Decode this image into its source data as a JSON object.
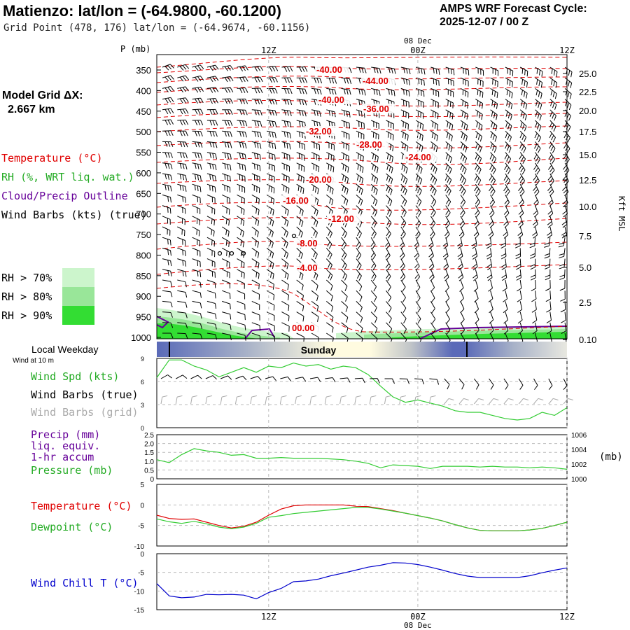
{
  "header": {
    "title": "Matienzo:  lat/lon = (-64.9800, -60.1200)",
    "subtitle": "Grid Point (478, 176) lat/lon = (-64.9674, -60.1156)",
    "cycle_title": "AMPS WRF Forecast Cycle:",
    "cycle_value": "2025-12-07 / 00  Z"
  },
  "model_grid": {
    "label": "Model Grid ΔX:",
    "value": "2.667 km"
  },
  "legend": {
    "temperature": "Temperature (°C)",
    "rh": "RH (%, WRT liq. wat.)",
    "cloud": "Cloud/Precip Outline",
    "wind_barbs": "Wind Barbs (kts) (true)",
    "rh_items": [
      "RH > 70%",
      "RH > 80%",
      "RH > 90%"
    ]
  },
  "colors": {
    "temperature": "#e00000",
    "rh70": "#ccf5cc",
    "rh80": "#99e699",
    "rh90": "#33dd33",
    "cloud": "#660099",
    "wind_speed": "#33cc33",
    "pressure": "#33cc33",
    "dewpoint": "#33cc33",
    "windchill": "#0000cc",
    "grid_barbs": "#aaaaaa",
    "time_bar_dark": "#5a6ab8",
    "time_bar_light": "#fffbe0"
  },
  "time_axis": {
    "top_date": "08 Dec",
    "ticks": [
      {
        "label": "12Z",
        "hour": 12
      },
      {
        "label": "00Z",
        "hour": 24
      },
      {
        "label": "12Z",
        "hour": 36
      }
    ],
    "hours_start": 3,
    "hours_end": 36,
    "bottom_date": "08 Dec"
  },
  "local_weekday": {
    "label": "Local Weekday",
    "day": "Sunday",
    "wind_note": "Wind at 10 m"
  },
  "chart_data": [
    {
      "type": "cross-section",
      "name": "upper-air time-height section",
      "ylabel": "P (mb)",
      "ylabel_right": "Kft MSL",
      "pressure_ticks": [
        350,
        400,
        450,
        500,
        550,
        600,
        650,
        700,
        750,
        800,
        850,
        900,
        950,
        1000
      ],
      "kft_ticks": [
        "25.0",
        "22.5",
        "20.0",
        "17.5",
        "15.0",
        "12.5",
        "10.0",
        "7.5",
        "5.0",
        "2.5",
        "0.10"
      ],
      "temperature_contour_labels": [
        "-40.00",
        "-44.00",
        "-40.00",
        "-36.00",
        "-32.00",
        "-28.00",
        "-24.00",
        "-20.00",
        "-16.00",
        "-12.00",
        "-8.00",
        "-4.00",
        "00.00"
      ]
    },
    {
      "type": "line",
      "name": "surface wind",
      "labels": [
        "Wind Spd (kts)",
        "Wind Barbs (true)",
        "Wind Barbs (grid)"
      ],
      "yticks": [
        "9",
        "6",
        "3",
        "0"
      ],
      "ylim": [
        0,
        9
      ],
      "x": [
        3,
        4,
        5,
        6,
        7,
        8,
        9,
        10,
        11,
        12,
        13,
        14,
        15,
        16,
        17,
        18,
        19,
        20,
        21,
        22,
        23,
        24,
        25,
        26,
        27,
        28,
        29,
        30,
        31,
        32,
        33,
        34,
        35,
        36
      ],
      "series": [
        {
          "name": "Wind Spd (kts)",
          "values": [
            6.5,
            8.8,
            8.8,
            8.0,
            7.5,
            6.6,
            7.2,
            7.8,
            7.2,
            8.0,
            7.8,
            8.4,
            8.0,
            8.2,
            7.6,
            8.0,
            7.8,
            6.9,
            5.4,
            4.0,
            3.3,
            3.6,
            3.2,
            2.8,
            2.2,
            2.0,
            2.0,
            1.6,
            1.2,
            1.0,
            1.2,
            2.0,
            1.6,
            2.6
          ]
        }
      ]
    },
    {
      "type": "line",
      "name": "precip and pressure",
      "labels": [
        "Precip (mm)",
        "liq. equiv.",
        "1-hr accum",
        "Pressure (mb)"
      ],
      "yticks_left": [
        "2.5",
        "2.0",
        "1.5",
        "1.0",
        "0.5",
        "0"
      ],
      "yticks_right": [
        "1006",
        "1004",
        "1002",
        "1000"
      ],
      "ylabel_right": "(mb)",
      "ylim_right": [
        1000,
        1006
      ],
      "x": [
        3,
        4,
        5,
        6,
        7,
        8,
        9,
        10,
        11,
        12,
        13,
        14,
        15,
        16,
        17,
        18,
        19,
        20,
        21,
        22,
        23,
        24,
        25,
        26,
        27,
        28,
        29,
        30,
        31,
        32,
        33,
        34,
        35,
        36
      ],
      "series": [
        {
          "name": "Pressure (mb)",
          "values": [
            1002.6,
            1002.2,
            1003.3,
            1004.1,
            1003.8,
            1003.6,
            1003.2,
            1003.3,
            1002.8,
            1002.8,
            1002.9,
            1002.8,
            1002.8,
            1002.8,
            1002.7,
            1002.6,
            1002.4,
            1002.1,
            1001.5,
            1001.9,
            1001.8,
            1001.7,
            1001.4,
            1001.7,
            1001.7,
            1001.7,
            1001.6,
            1001.7,
            1001.6,
            1001.6,
            1001.5,
            1001.6,
            1001.5,
            1001.3
          ]
        }
      ]
    },
    {
      "type": "line",
      "name": "temperature and dewpoint",
      "labels": [
        "Temperature (°C)",
        "Dewpoint (°C)"
      ],
      "yticks": [
        "5",
        "0",
        "-5",
        "-10"
      ],
      "ylim": [
        -10,
        5
      ],
      "x": [
        3,
        4,
        5,
        6,
        7,
        8,
        9,
        10,
        11,
        12,
        13,
        14,
        15,
        16,
        17,
        18,
        19,
        20,
        21,
        22,
        23,
        24,
        25,
        26,
        27,
        28,
        29,
        30,
        31,
        32,
        33,
        34,
        35,
        36
      ],
      "series": [
        {
          "name": "Temperature (°C)",
          "values": [
            -2.5,
            -3.3,
            -3.5,
            -3.4,
            -4.2,
            -5.0,
            -5.6,
            -5.2,
            -4.2,
            -2.5,
            -1.0,
            -0.2,
            0.0,
            0.0,
            0.0,
            0.0,
            -0.3,
            -0.4,
            -0.9,
            -1.4,
            -2.0,
            -2.6,
            -3.2,
            -3.9,
            -4.8,
            -5.6,
            -6.2,
            -6.3,
            -6.3,
            -6.3,
            -6.1,
            -5.7,
            -5.0,
            -4.2
          ]
        },
        {
          "name": "Dewpoint (°C)",
          "values": [
            -3.4,
            -4.1,
            -4.5,
            -4.0,
            -4.6,
            -5.4,
            -5.8,
            -5.4,
            -4.5,
            -3.0,
            -2.6,
            -2.1,
            -1.8,
            -1.5,
            -1.2,
            -0.9,
            -0.6,
            -0.6,
            -1.0,
            -1.5,
            -2.0,
            -2.6,
            -3.2,
            -3.9,
            -4.8,
            -5.6,
            -6.2,
            -6.3,
            -6.3,
            -6.3,
            -6.1,
            -5.7,
            -5.0,
            -4.2
          ]
        }
      ]
    },
    {
      "type": "line",
      "name": "wind chill",
      "labels": [
        "Wind Chill T (°C)"
      ],
      "yticks": [
        "0",
        "-5",
        "-10",
        "-15"
      ],
      "ylim": [
        -15,
        0
      ],
      "x": [
        3,
        4,
        5,
        6,
        7,
        8,
        9,
        10,
        11,
        12,
        13,
        14,
        15,
        16,
        17,
        18,
        19,
        20,
        21,
        22,
        23,
        24,
        25,
        26,
        27,
        28,
        29,
        30,
        31,
        32,
        33,
        34,
        35,
        36
      ],
      "series": [
        {
          "name": "Wind Chill T (°C)",
          "values": [
            -8.0,
            -11.3,
            -11.8,
            -11.6,
            -10.9,
            -11.0,
            -10.9,
            -11.1,
            -12.1,
            -10.4,
            -9.3,
            -7.5,
            -7.3,
            -6.8,
            -5.9,
            -5.2,
            -4.4,
            -3.6,
            -3.1,
            -2.4,
            -2.5,
            -2.9,
            -3.6,
            -4.4,
            -5.3,
            -6.0,
            -6.4,
            -6.4,
            -6.4,
            -6.4,
            -5.9,
            -5.1,
            -4.4,
            -3.8
          ]
        }
      ]
    }
  ]
}
